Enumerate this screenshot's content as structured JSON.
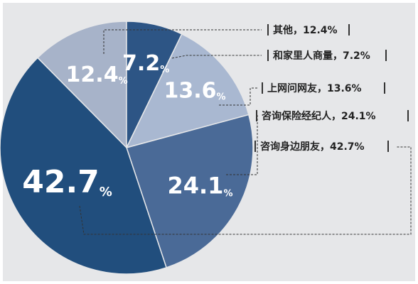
{
  "chart_data": {
    "type": "pie",
    "slices": [
      {
        "label": "其他",
        "value": 12.4,
        "legend": "其他，12.4%",
        "color": "#a7b3c9",
        "display_value": "12.4",
        "suffix": "%"
      },
      {
        "label": "和家里人商量",
        "value": 7.2,
        "legend": "和家里人商量，7.2%",
        "color": "#2d5585",
        "display_value": "7.2",
        "suffix": "%"
      },
      {
        "label": "上网问网友",
        "value": 13.6,
        "legend": "上网问网友，13.6%",
        "color": "#a9b8d1",
        "display_value": "13.6",
        "suffix": "%"
      },
      {
        "label": "咨询保险经纪人",
        "value": 24.1,
        "legend": "咨询保险经纪人，24.1%",
        "color": "#4a6a97",
        "display_value": "24.1",
        "suffix": "%"
      },
      {
        "label": "咨询身边朋友",
        "value": 42.7,
        "legend": "咨询身边朋友，42.7%",
        "color": "#214e7d",
        "display_value": "42.7",
        "suffix": "%"
      }
    ]
  },
  "colors": {
    "background_panel": "#e6e7e9",
    "leader_line": "#333333",
    "legend_bar": "#333333"
  }
}
